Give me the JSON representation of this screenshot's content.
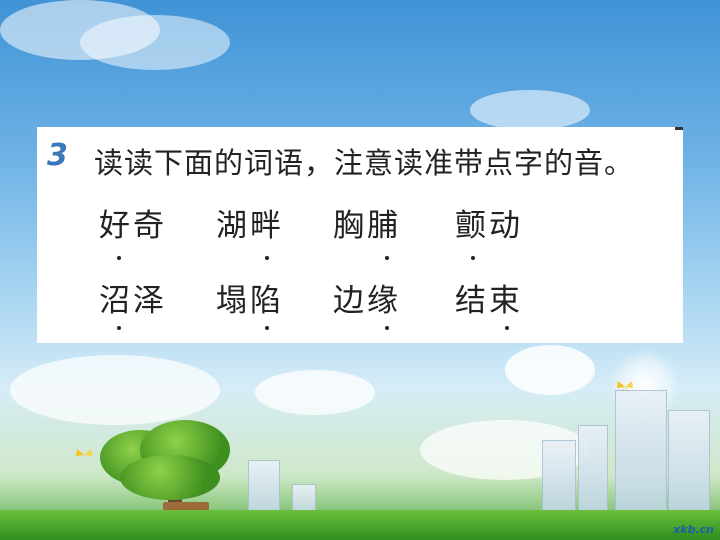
{
  "question": {
    "number": "3",
    "instruction": "读读下面的词语，注意读准带点字的音。"
  },
  "words": {
    "row1": [
      "好奇",
      "湖畔",
      "胸脯",
      "颤动"
    ],
    "row2": [
      "沼泽",
      "塌陷",
      "边缘",
      "结束"
    ]
  },
  "watermark": "xkb.cn",
  "colors": {
    "number": "#3a78b8",
    "text": "#222222",
    "card": "#ffffff"
  }
}
